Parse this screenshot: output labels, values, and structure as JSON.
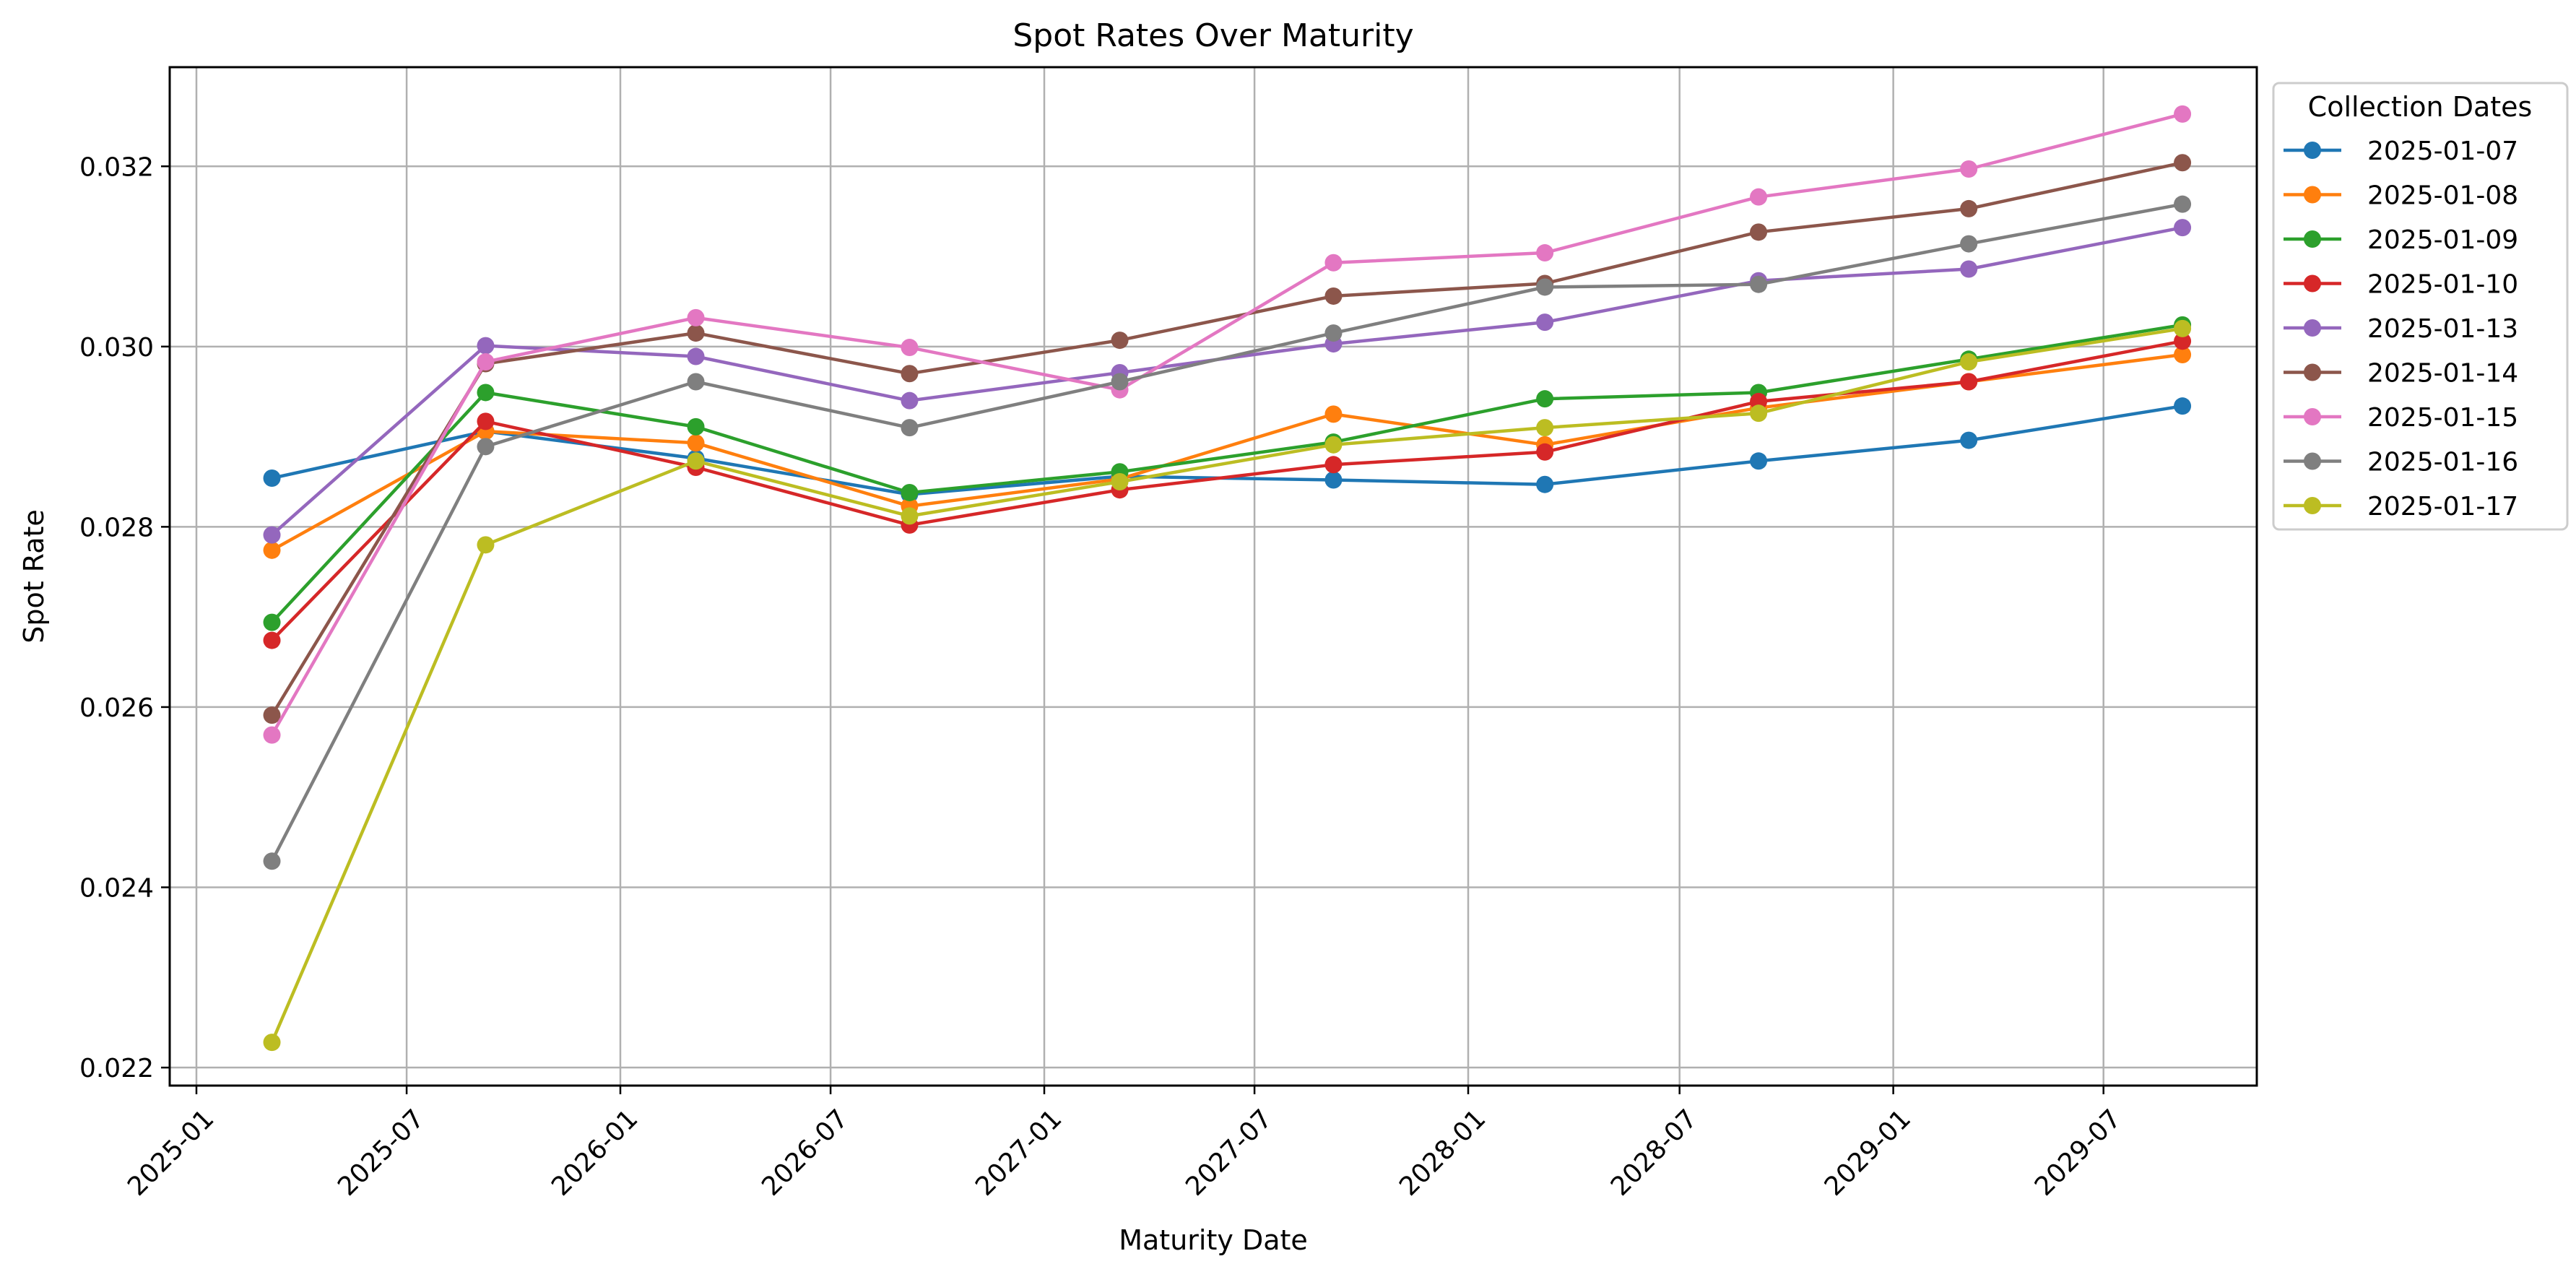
{
  "chart_data": {
    "type": "line",
    "title": "Spot Rates Over Maturity",
    "xlabel": "Maturity Date",
    "ylabel": "Spot Rate",
    "x_tick_labels": [
      "2025-01",
      "2025-07",
      "2026-01",
      "2026-07",
      "2027-01",
      "2027-07",
      "2028-01",
      "2028-07",
      "2029-01",
      "2029-07"
    ],
    "x_ticks": [
      "2025-01-01",
      "2025-07-01",
      "2026-01-01",
      "2026-07-01",
      "2027-01-01",
      "2027-07-01",
      "2028-01-01",
      "2028-07-01",
      "2029-01-01",
      "2029-07-01"
    ],
    "xlim": [
      "2024-12-09",
      "2029-11-10"
    ],
    "y_tick_labels": [
      "0.022",
      "0.024",
      "0.026",
      "0.028",
      "0.030",
      "0.032"
    ],
    "y_ticks": [
      0.022,
      0.024,
      0.026,
      0.028,
      0.03,
      0.032
    ],
    "ylim": [
      0.0218,
      0.0331
    ],
    "grid": true,
    "legend": {
      "title": "Collection Dates",
      "placement": "outside top-right"
    },
    "x": [
      "2025-03-07",
      "2025-09-07",
      "2026-03-07",
      "2026-09-07",
      "2027-03-07",
      "2027-09-07",
      "2028-03-07",
      "2028-09-07",
      "2029-03-07",
      "2029-09-07"
    ],
    "series": [
      {
        "name": "2025-01-07",
        "color": "#1f77b4",
        "values": [
          0.02854,
          0.02906,
          0.02876,
          0.02836,
          0.02856,
          0.02852,
          0.02847,
          0.02873,
          0.02896,
          0.02934
        ]
      },
      {
        "name": "2025-01-08",
        "color": "#ff7f0e",
        "values": [
          0.02774,
          0.02906,
          0.02893,
          0.02823,
          0.02853,
          0.02925,
          0.02891,
          0.02932,
          0.02961,
          0.02991
        ]
      },
      {
        "name": "2025-01-09",
        "color": "#2ca02c",
        "values": [
          0.02694,
          0.02949,
          0.02911,
          0.02838,
          0.02861,
          0.02894,
          0.02942,
          0.02949,
          0.02986,
          0.03024
        ]
      },
      {
        "name": "2025-01-10",
        "color": "#d62728",
        "values": [
          0.02674,
          0.02917,
          0.02866,
          0.02802,
          0.02841,
          0.02869,
          0.02883,
          0.02939,
          0.02961,
          0.03006
        ]
      },
      {
        "name": "2025-01-13",
        "color": "#9467bd",
        "values": [
          0.02791,
          0.03001,
          0.02989,
          0.0294,
          0.02971,
          0.03003,
          0.03027,
          0.03073,
          0.03086,
          0.03132
        ]
      },
      {
        "name": "2025-01-14",
        "color": "#8c564b",
        "values": [
          0.02591,
          0.02981,
          0.03015,
          0.0297,
          0.03007,
          0.03056,
          0.0307,
          0.03127,
          0.03153,
          0.03204
        ]
      },
      {
        "name": "2025-01-15",
        "color": "#e377c2",
        "values": [
          0.02569,
          0.02983,
          0.03032,
          0.02999,
          0.02952,
          0.03093,
          0.03104,
          0.03166,
          0.03197,
          0.03258
        ]
      },
      {
        "name": "2025-01-16",
        "color": "#7f7f7f",
        "values": [
          0.02429,
          0.02889,
          0.02961,
          0.0291,
          0.02961,
          0.03015,
          0.03066,
          0.03069,
          0.03114,
          0.03158
        ]
      },
      {
        "name": "2025-01-17",
        "color": "#bcbd22",
        "values": [
          0.02228,
          0.0278,
          0.02873,
          0.02812,
          0.0285,
          0.02891,
          0.0291,
          0.02926,
          0.02983,
          0.0302
        ]
      }
    ]
  }
}
